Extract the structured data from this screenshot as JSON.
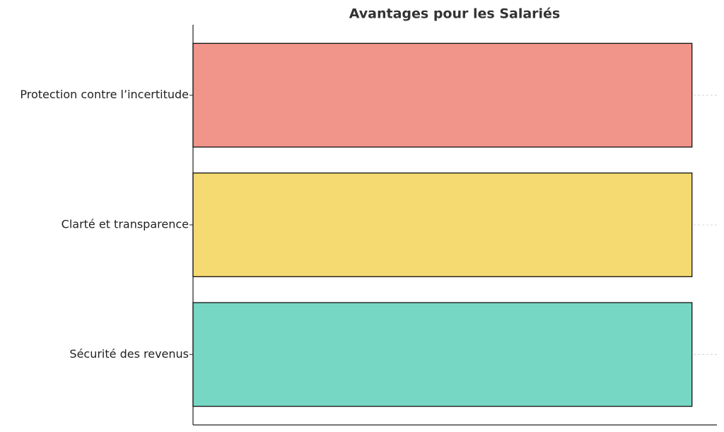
{
  "chart_data": {
    "type": "barh",
    "title": "Avantages pour les Salariés",
    "categories": [
      "Sécurité des revenus",
      "Clarté et transparence",
      "Protection contre l’incertitude"
    ],
    "series": [
      {
        "values": [
          1,
          1,
          1
        ],
        "colors": [
          "#76d7c4",
          "#f5da72",
          "#f1948a"
        ]
      }
    ],
    "xlim": [
      0,
      1.05
    ],
    "grid": true
  }
}
